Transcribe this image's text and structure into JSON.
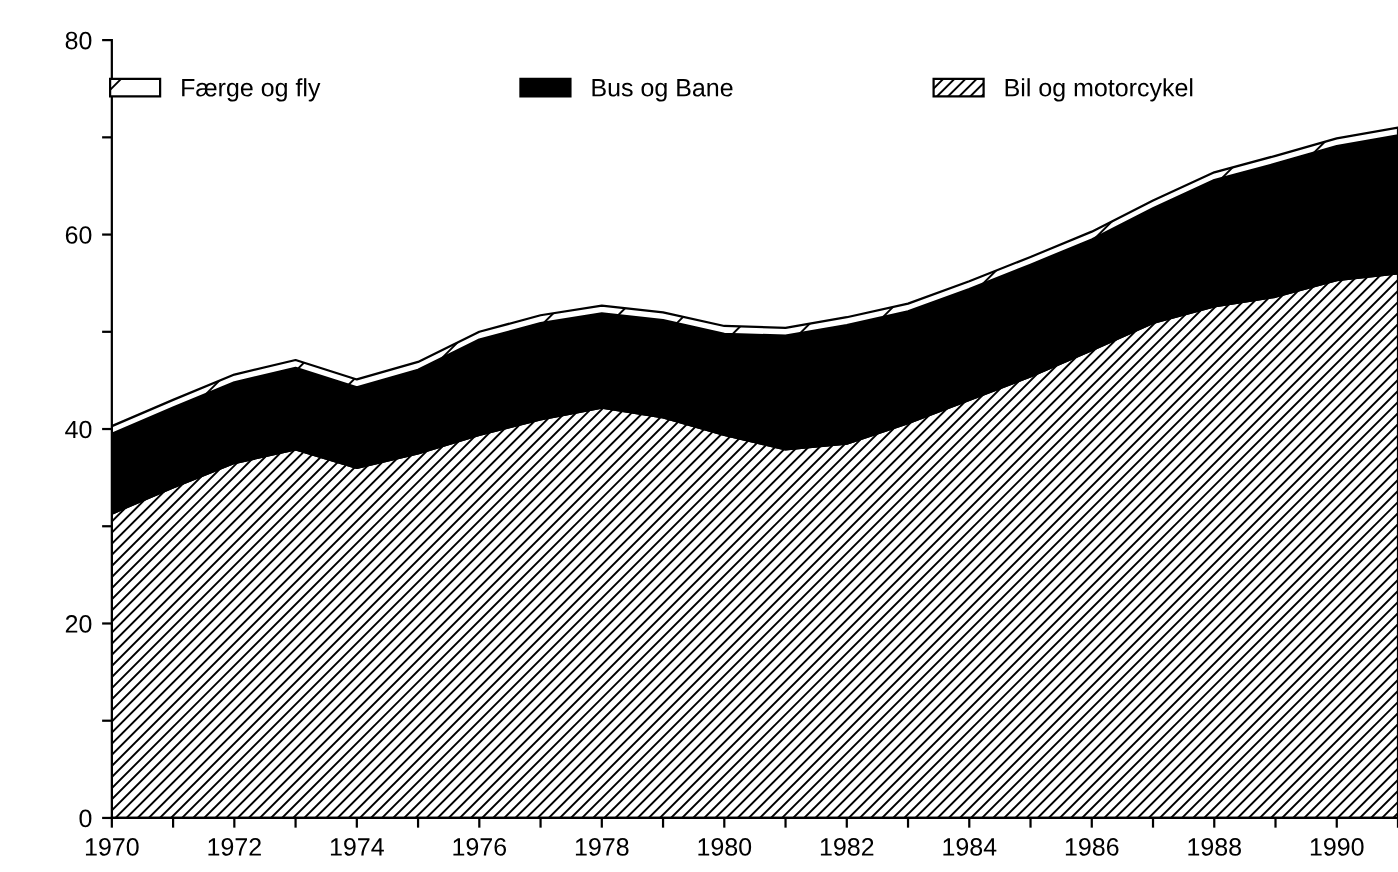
{
  "chart_data": {
    "type": "area",
    "stacked": true,
    "x": [
      1970,
      1971,
      1972,
      1973,
      1974,
      1975,
      1976,
      1977,
      1978,
      1979,
      1980,
      1981,
      1982,
      1983,
      1984,
      1985,
      1986,
      1987,
      1988,
      1989,
      1990,
      1991
    ],
    "series": [
      {
        "name": "Bil og motorcykel",
        "color": "#000000",
        "values": [
          31.3,
          34.0,
          36.5,
          37.9,
          36.0,
          37.5,
          39.4,
          41.0,
          42.2,
          41.2,
          39.4,
          37.9,
          38.5,
          40.6,
          43.0,
          45.4,
          48.1,
          50.9,
          52.6,
          53.6,
          55.3,
          56.0
        ]
      },
      {
        "name": "Bus og Bane",
        "color": "#000000",
        "values": [
          8.2,
          8.2,
          8.3,
          8.4,
          8.3,
          8.6,
          9.8,
          9.9,
          9.7,
          10.0,
          10.4,
          11.7,
          12.2,
          11.5,
          11.4,
          11.5,
          11.4,
          11.8,
          13.0,
          13.7,
          13.8,
          14.2
        ]
      },
      {
        "name": "Færge og fly",
        "color": "#000000",
        "values": [
          0.8,
          0.8,
          0.8,
          0.8,
          0.8,
          0.8,
          0.8,
          0.8,
          0.8,
          0.8,
          0.8,
          0.8,
          0.8,
          0.8,
          0.8,
          0.8,
          0.8,
          0.8,
          0.8,
          0.8,
          0.8,
          0.8
        ]
      }
    ],
    "xlim": [
      1970,
      1991
    ],
    "xticks": [
      1970,
      {
        "value": 1971,
        "label": null
      },
      1972,
      {
        "value": 1973,
        "label": null
      },
      1974,
      {
        "value": 1975,
        "label": null
      },
      1976,
      {
        "value": 1977,
        "label": null
      },
      1978,
      {
        "value": 1979,
        "label": null
      },
      1980,
      {
        "value": 1981,
        "label": null
      },
      1982,
      {
        "value": 1983,
        "label": null
      },
      1984,
      {
        "value": 1985,
        "label": null
      },
      1986,
      {
        "value": 1987,
        "label": null
      },
      1988,
      {
        "value": 1989,
        "label": null
      },
      1990,
      {
        "value": 1991,
        "label": null
      }
    ],
    "ylim": [
      0,
      80
    ],
    "yticks": [
      0,
      {
        "value": 10,
        "label": null
      },
      20,
      {
        "value": 30,
        "label": null
      },
      40,
      {
        "value": 50,
        "label": null
      },
      60,
      {
        "value": 70,
        "label": null
      },
      80
    ],
    "legend": "top",
    "grid": false
  }
}
